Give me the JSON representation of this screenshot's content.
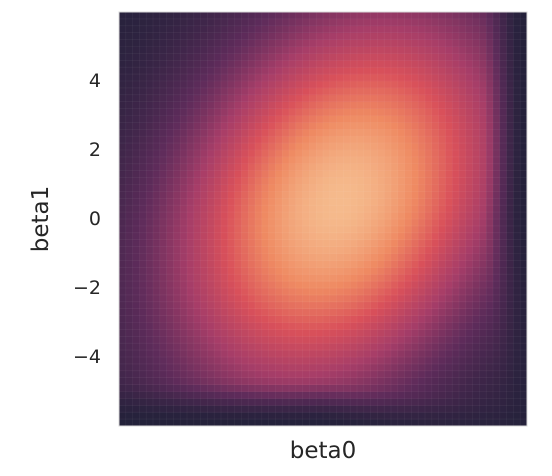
{
  "chart_data": {
    "type": "heatmap",
    "title": "",
    "xlabel": "beta0",
    "ylabel": "beta1",
    "xlim": [
      -6,
      6
    ],
    "ylim": [
      -6,
      6
    ],
    "xticks": [],
    "yticks": [
      -4,
      -2,
      0,
      2,
      4
    ],
    "ytick_labels": [
      "−4",
      "−2",
      "0",
      "2",
      "4"
    ],
    "grid": true,
    "colormap": [
      "#23213a",
      "#5d2b5a",
      "#a63d68",
      "#d9505a",
      "#ef8a62",
      "#f5ba8c"
    ],
    "z_range": [
      0,
      1
    ],
    "peak": {
      "x": 0.5,
      "y": 0.5,
      "value": 1
    },
    "spread": {
      "x": 3.2,
      "y": 3.6
    },
    "boundary": {
      "lower_asymptote_beta1": -5.5,
      "right_asymptote_beta0": 5.5,
      "description": "density near zero where beta1 < -5.5 or beta0 > 5.5 (hyperbolic corner)"
    }
  }
}
